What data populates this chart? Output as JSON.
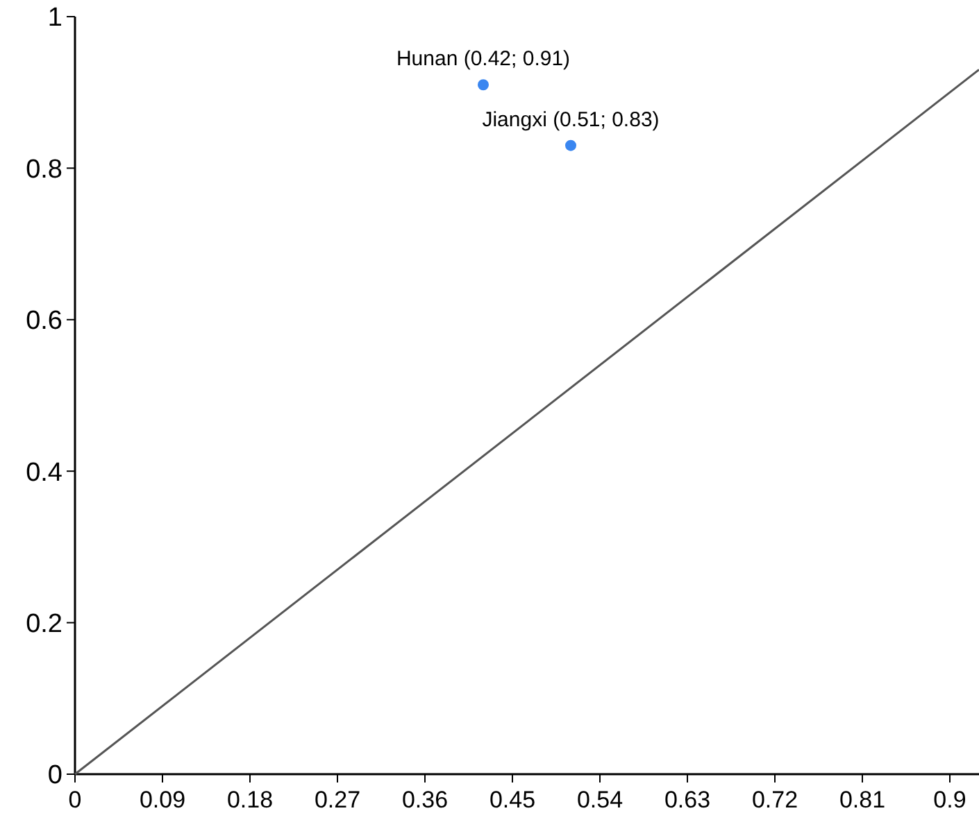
{
  "chart_data": {
    "type": "scatter",
    "xlim": [
      0,
      0.93
    ],
    "ylim": [
      0,
      1
    ],
    "xticks": [
      0,
      0.09,
      0.18,
      0.27,
      0.36,
      0.45,
      0.54,
      0.63,
      0.72,
      0.81,
      0.9
    ],
    "yticks": [
      0,
      0.2,
      0.4,
      0.6,
      0.8,
      1
    ],
    "grid": false,
    "series": [
      {
        "type": "line",
        "color": "#555555",
        "x": [
          0,
          0.93
        ],
        "values": [
          0,
          0.93
        ],
        "line_style": "solid"
      },
      {
        "color": "#3a86f0",
        "marker": "circle",
        "x": [
          0.42,
          0.51
        ],
        "values": [
          0.91,
          0.83
        ]
      }
    ],
    "annotations": [
      {
        "text": "Hunan (0.42; 0.91)",
        "x": 0.42,
        "y": 0.91
      },
      {
        "text": "Jiangxi (0.51; 0.83)",
        "x": 0.51,
        "y": 0.83
      }
    ]
  }
}
